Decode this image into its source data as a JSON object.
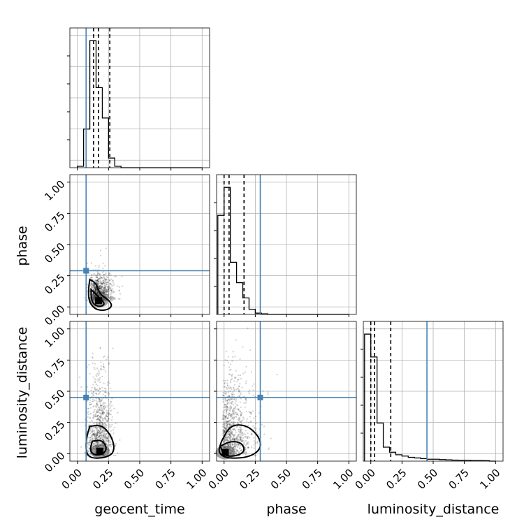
{
  "chart_data": {
    "type": "corner",
    "parameters": [
      "geocent_time",
      "phase",
      "luminosity_distance"
    ],
    "truths": {
      "geocent_time": 0.07,
      "phase": 0.29,
      "luminosity_distance": 0.45
    },
    "truth_color": "#4682b4",
    "tick_labels": [
      "0.00",
      "0.25",
      "0.50",
      "0.75",
      "1.00"
    ],
    "xlim": [
      -0.06,
      1.06
    ],
    "ylim": [
      -0.06,
      1.06
    ],
    "grid": true,
    "histograms": [
      {
        "parameter": "geocent_time",
        "bin_edges": [
          0.0,
          0.05,
          0.1,
          0.15,
          0.2,
          0.25,
          0.3,
          0.35,
          0.4,
          0.45,
          0.5,
          0.55,
          0.6,
          0.65,
          0.7,
          0.75,
          0.8,
          0.85,
          0.9,
          0.95,
          1.0
        ],
        "counts": [
          0.01,
          0.28,
          0.92,
          0.58,
          0.36,
          0.07,
          0.01,
          0,
          0,
          0,
          0,
          0,
          0,
          0,
          0,
          0,
          0,
          0,
          0,
          0
        ],
        "quantiles": [
          0.13,
          0.17,
          0.26
        ]
      },
      {
        "parameter": "phase",
        "bin_edges": [
          -0.05,
          0.0,
          0.05,
          0.1,
          0.15,
          0.2,
          0.25,
          0.3,
          0.35,
          0.4,
          0.45,
          0.5,
          0.55,
          0.6,
          0.65,
          0.7,
          0.75,
          0.8,
          0.85,
          0.9,
          0.95,
          1.0
        ],
        "counts": [
          0.78,
          1.0,
          0.41,
          0.25,
          0.13,
          0.04,
          0.01,
          0.005,
          0,
          0,
          0,
          0,
          0,
          0,
          0,
          0,
          0,
          0,
          0,
          0,
          0
        ],
        "quantiles": [
          0.0,
          0.04,
          0.16
        ]
      },
      {
        "parameter": "luminosity_distance",
        "bin_edges": [
          -0.05,
          0.0,
          0.05,
          0.1,
          0.15,
          0.2,
          0.25,
          0.3,
          0.35,
          0.4,
          0.45,
          0.5,
          0.55,
          0.6,
          0.65,
          0.7,
          0.75,
          0.8,
          0.85,
          0.9,
          0.95,
          1.0
        ],
        "counts": [
          1.0,
          0.82,
          0.3,
          0.11,
          0.07,
          0.05,
          0.04,
          0.03,
          0.025,
          0.02,
          0.015,
          0.015,
          0.012,
          0.01,
          0.008,
          0.007,
          0.007,
          0.005,
          0.005,
          0.004,
          0
        ],
        "quantiles": [
          0.0,
          0.03,
          0.16
        ]
      }
    ],
    "scatter_panels": [
      {
        "x": "geocent_time",
        "y": "phase",
        "density_peak": [
          0.17,
          0.05
        ],
        "contours": [
          [
            [
              0.1,
              0.22
            ],
            [
              0.15,
              0.19
            ],
            [
              0.18,
              0.1
            ],
            [
              0.26,
              0.05
            ],
            [
              0.28,
              0.0
            ],
            [
              0.22,
              -0.03
            ],
            [
              0.14,
              -0.02
            ],
            [
              0.09,
              0.05
            ],
            [
              0.09,
              0.15
            ]
          ],
          [
            [
              0.11,
              0.14
            ],
            [
              0.15,
              0.1
            ],
            [
              0.2,
              0.05
            ],
            [
              0.22,
              0.02
            ],
            [
              0.18,
              0.0
            ],
            [
              0.13,
              0.02
            ],
            [
              0.11,
              0.07
            ]
          ]
        ]
      },
      {
        "x": "geocent_time",
        "y": "luminosity_distance",
        "density_peak": [
          0.18,
          0.02
        ],
        "contours": [
          [
            [
              0.1,
              0.22
            ],
            [
              0.2,
              0.23
            ],
            [
              0.28,
              0.13
            ],
            [
              0.3,
              0.02
            ],
            [
              0.24,
              -0.03
            ],
            [
              0.12,
              -0.04
            ],
            [
              0.07,
              0.0
            ],
            [
              0.07,
              0.12
            ]
          ],
          [
            [
              0.12,
              0.1
            ],
            [
              0.2,
              0.11
            ],
            [
              0.24,
              0.04
            ],
            [
              0.2,
              -0.01
            ],
            [
              0.13,
              -0.01
            ],
            [
              0.1,
              0.03
            ]
          ]
        ]
      },
      {
        "x": "phase",
        "y": "luminosity_distance",
        "density_peak": [
          0.01,
          0.01
        ],
        "contours": [
          [
            [
              -0.02,
              0.1
            ],
            [
              0.05,
              0.23
            ],
            [
              0.18,
              0.23
            ],
            [
              0.28,
              0.14
            ],
            [
              0.3,
              0.04
            ],
            [
              0.2,
              -0.03
            ],
            [
              0.02,
              -0.04
            ],
            [
              -0.05,
              0.01
            ]
          ],
          [
            [
              -0.03,
              0.06
            ],
            [
              0.05,
              0.1
            ],
            [
              0.14,
              0.09
            ],
            [
              0.17,
              0.02
            ],
            [
              0.1,
              -0.02
            ],
            [
              0.0,
              -0.02
            ]
          ]
        ]
      }
    ]
  }
}
